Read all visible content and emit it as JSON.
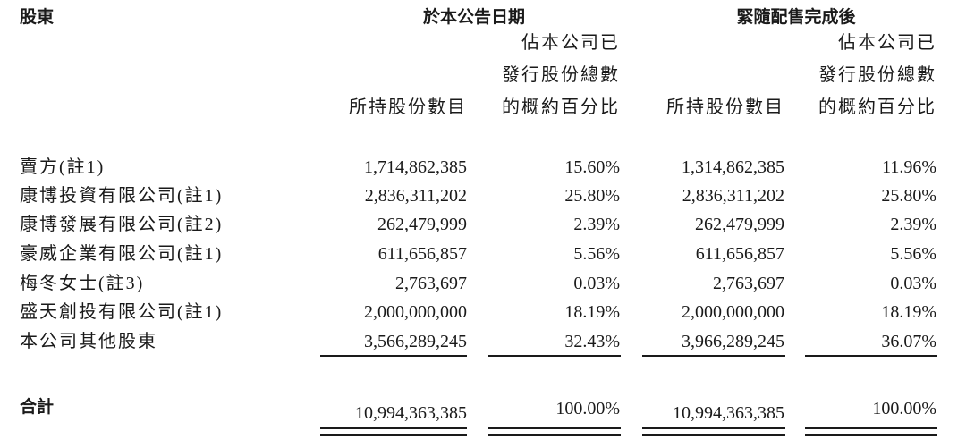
{
  "table": {
    "header": {
      "shareholder": "股東",
      "groups": [
        "於本公告日期",
        "緊隨配售完成後"
      ]
    },
    "subheaders": [
      {
        "lines": [
          "所持股份數目"
        ]
      },
      {
        "lines": [
          "佔本公司已",
          "發行股份總數",
          "的概約百分比"
        ]
      },
      {
        "lines": [
          "所持股份數目"
        ]
      },
      {
        "lines": [
          "佔本公司已",
          "發行股份總數",
          "的概約百分比"
        ]
      }
    ],
    "rows": [
      [
        "賣方(註1)",
        "1,714,862,385",
        "15.60%",
        "1,314,862,385",
        "11.96%"
      ],
      [
        "康博投資有限公司(註1)",
        "2,836,311,202",
        "25.80%",
        "2,836,311,202",
        "25.80%"
      ],
      [
        "康博發展有限公司(註2)",
        "262,479,999",
        "2.39%",
        "262,479,999",
        "2.39%"
      ],
      [
        "豪威企業有限公司(註1)",
        "611,656,857",
        "5.56%",
        "611,656,857",
        "5.56%"
      ],
      [
        "梅冬女士(註3)",
        "2,763,697",
        "0.03%",
        "2,763,697",
        "0.03%"
      ],
      [
        "盛天創投有限公司(註1)",
        "2,000,000,000",
        "18.19%",
        "2,000,000,000",
        "18.19%"
      ],
      [
        "本公司其他股東",
        "3,566,289,245",
        "32.43%",
        "3,966,289,245",
        "36.07%"
      ]
    ],
    "total": [
      "合計",
      "10,994,363,385",
      "100.00%",
      "10,994,363,385",
      "100.00%"
    ]
  }
}
